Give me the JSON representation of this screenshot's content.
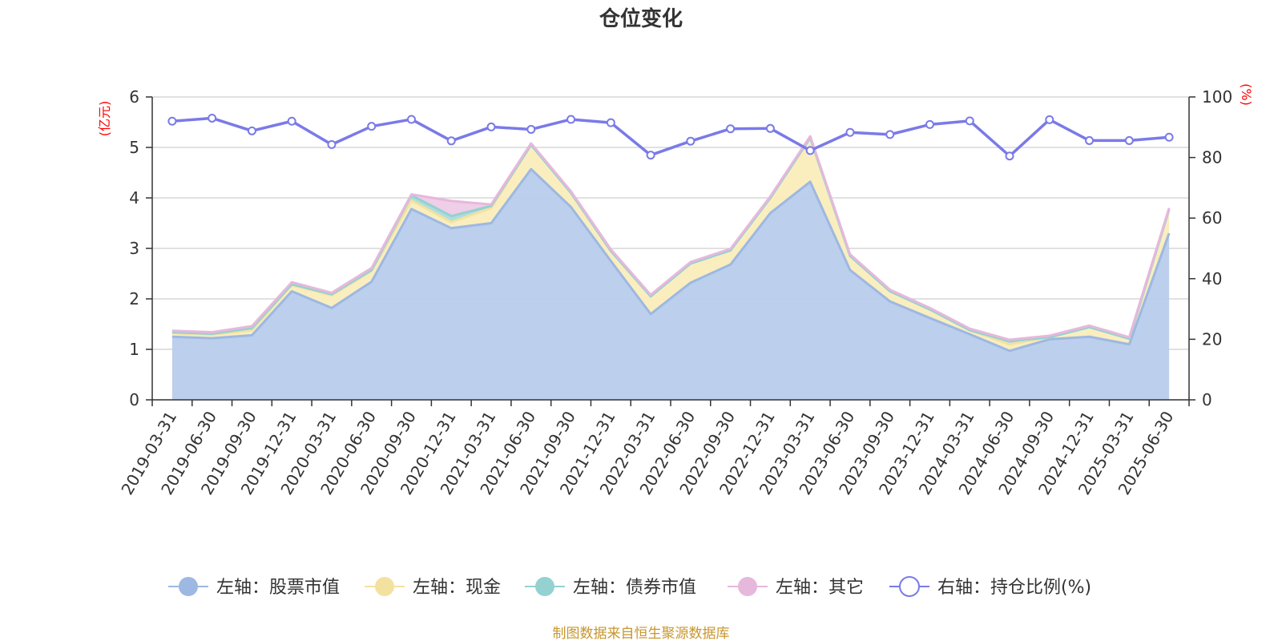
{
  "chart_data": {
    "type": "area",
    "title": "仓位变化",
    "source": "制图数据来自恒生聚源数据库",
    "left_axis_unit": "(亿元)",
    "right_axis_unit": "(%)",
    "left_ylim": [
      0,
      6
    ],
    "left_ticks": [
      "0",
      "1",
      "2",
      "3",
      "4",
      "5",
      "6"
    ],
    "right_ylim": [
      0,
      100
    ],
    "right_ticks": [
      "0",
      "20",
      "40",
      "60",
      "80",
      "100"
    ],
    "grid": true,
    "legend_placement": "bottom",
    "categories": [
      "2019-03-31",
      "2019-06-30",
      "2019-09-30",
      "2019-12-31",
      "2020-03-31",
      "2020-06-30",
      "2020-09-30",
      "2020-12-31",
      "2021-03-31",
      "2021-06-30",
      "2021-09-30",
      "2021-12-31",
      "2022-03-31",
      "2022-06-30",
      "2022-09-30",
      "2022-12-31",
      "2023-03-31",
      "2023-06-30",
      "2023-09-30",
      "2023-12-31",
      "2024-03-31",
      "2024-06-30",
      "2024-09-30",
      "2024-12-31",
      "2025-03-31",
      "2025-06-30"
    ],
    "series": [
      {
        "name": "左轴：股票市值",
        "axis": "left",
        "stacked": true,
        "color": "#9db8e2",
        "fill": "#b8cceb",
        "values": [
          1.25,
          1.22,
          1.28,
          2.15,
          1.82,
          2.34,
          3.78,
          3.4,
          3.5,
          4.57,
          3.82,
          2.75,
          1.7,
          2.32,
          2.68,
          3.7,
          4.32,
          2.57,
          1.95,
          1.62,
          1.3,
          0.97,
          1.2,
          1.25,
          1.1,
          3.3
        ]
      },
      {
        "name": "左轴：现金",
        "axis": "left",
        "stacked": true,
        "color": "#f3e1a0",
        "fill": "#faedbc",
        "values": [
          0.07,
          0.07,
          0.1,
          0.12,
          0.25,
          0.21,
          0.17,
          0.12,
          0.3,
          0.48,
          0.28,
          0.2,
          0.35,
          0.38,
          0.28,
          0.3,
          0.87,
          0.28,
          0.2,
          0.17,
          0.08,
          0.13,
          0.04,
          0.19,
          0.11,
          0.47
        ]
      },
      {
        "name": "左轴：债券市值",
        "axis": "left",
        "stacked": true,
        "color": "#95d1d1",
        "fill": "#a6dcdc",
        "values": [
          0.02,
          0.02,
          0.04,
          0.02,
          0.02,
          0.02,
          0.1,
          0.12,
          0.04,
          0.0,
          0.0,
          0.0,
          0.0,
          0.0,
          0.0,
          0.0,
          0.0,
          0.0,
          0.0,
          0.0,
          0.0,
          0.06,
          0.0,
          0.0,
          0.0,
          0.0
        ]
      },
      {
        "name": "左轴：其它",
        "axis": "left",
        "stacked": true,
        "color": "#e6b8dc",
        "fill": "#eecbe6",
        "values": [
          0.03,
          0.03,
          0.04,
          0.04,
          0.03,
          0.04,
          0.02,
          0.3,
          0.03,
          0.03,
          0.03,
          0.03,
          0.03,
          0.03,
          0.03,
          0.03,
          0.03,
          0.03,
          0.03,
          0.03,
          0.03,
          0.03,
          0.03,
          0.03,
          0.03,
          0.03
        ]
      },
      {
        "name": "右轴：持仓比例(%)",
        "axis": "right",
        "stacked": false,
        "color": "#7a7ae8",
        "values": [
          92.0,
          93.0,
          88.8,
          92.0,
          84.3,
          90.3,
          92.6,
          85.5,
          90.1,
          89.3,
          92.6,
          91.5,
          80.8,
          85.4,
          89.5,
          89.6,
          82.3,
          88.3,
          87.6,
          90.9,
          92.1,
          80.5,
          92.5,
          85.6,
          85.6,
          86.7
        ]
      }
    ]
  }
}
